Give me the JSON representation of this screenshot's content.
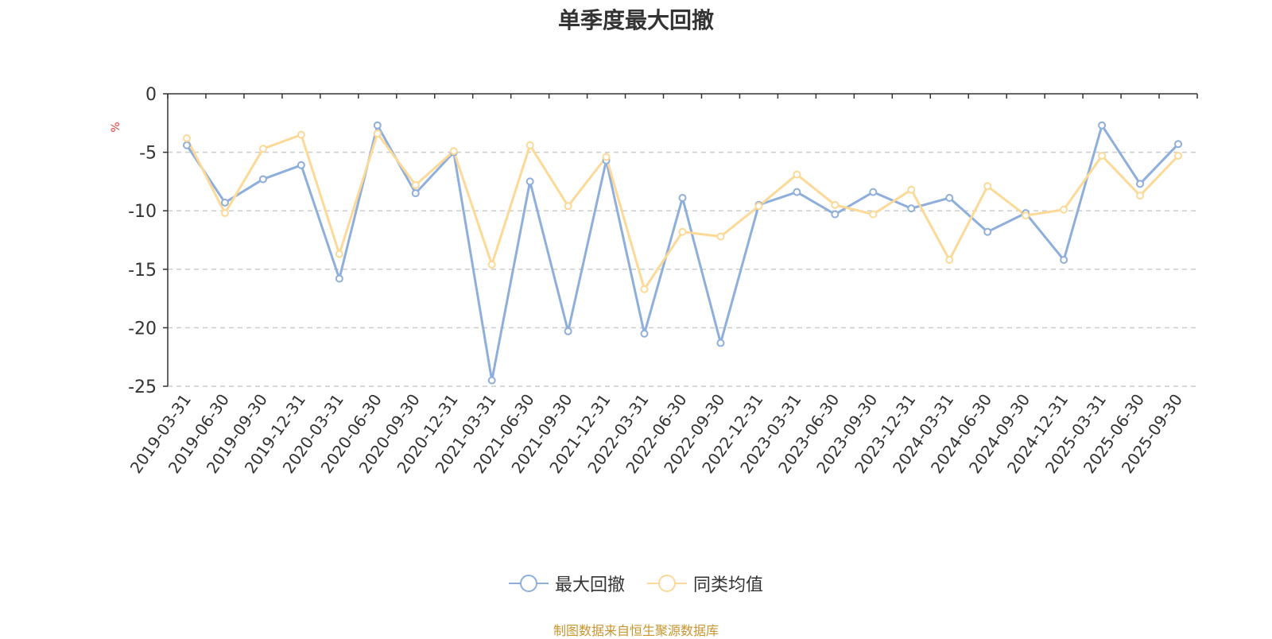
{
  "chart_data": {
    "type": "line",
    "title": "单季度最大回撤",
    "ylabel": "%",
    "ylim": [
      -25,
      0
    ],
    "yticks": [
      0,
      -5,
      -10,
      -15,
      -20,
      -25
    ],
    "grid": true,
    "legend_position": "bottom",
    "categories": [
      "2019-03-31",
      "2019-06-30",
      "2019-09-30",
      "2019-12-31",
      "2020-03-31",
      "2020-06-30",
      "2020-09-30",
      "2020-12-31",
      "2021-03-31",
      "2021-06-30",
      "2021-09-30",
      "2021-12-31",
      "2022-03-31",
      "2022-06-30",
      "2022-09-30",
      "2022-12-31",
      "2023-03-31",
      "2023-06-30",
      "2023-09-30",
      "2023-12-31",
      "2024-03-31",
      "2024-06-30",
      "2024-09-30",
      "2024-12-31",
      "2025-03-31",
      "2025-06-30",
      "2025-09-30"
    ],
    "series": [
      {
        "name": "最大回撤",
        "color": "#8eaedb",
        "values": [
          -4.4,
          -9.3,
          -7.3,
          -6.1,
          -15.8,
          -2.7,
          -8.5,
          -5.0,
          -24.5,
          -7.5,
          -20.3,
          -5.7,
          -20.5,
          -8.9,
          -21.3,
          -9.5,
          -8.4,
          -10.3,
          -8.4,
          -9.8,
          -8.9,
          -11.8,
          -10.2,
          -14.2,
          -2.7,
          -7.7,
          -4.3
        ]
      },
      {
        "name": "同类均值",
        "color": "#fcd997",
        "values": [
          -3.8,
          -10.2,
          -4.7,
          -3.5,
          -13.7,
          -3.4,
          -7.8,
          -4.9,
          -14.6,
          -4.4,
          -9.6,
          -5.4,
          -16.7,
          -11.8,
          -12.2,
          -9.6,
          -6.9,
          -9.5,
          -10.3,
          -8.2,
          -14.2,
          -7.9,
          -10.4,
          -9.9,
          -5.3,
          -8.7,
          -5.3
        ]
      }
    ]
  },
  "source_note": "制图数据来自恒生聚源数据库"
}
